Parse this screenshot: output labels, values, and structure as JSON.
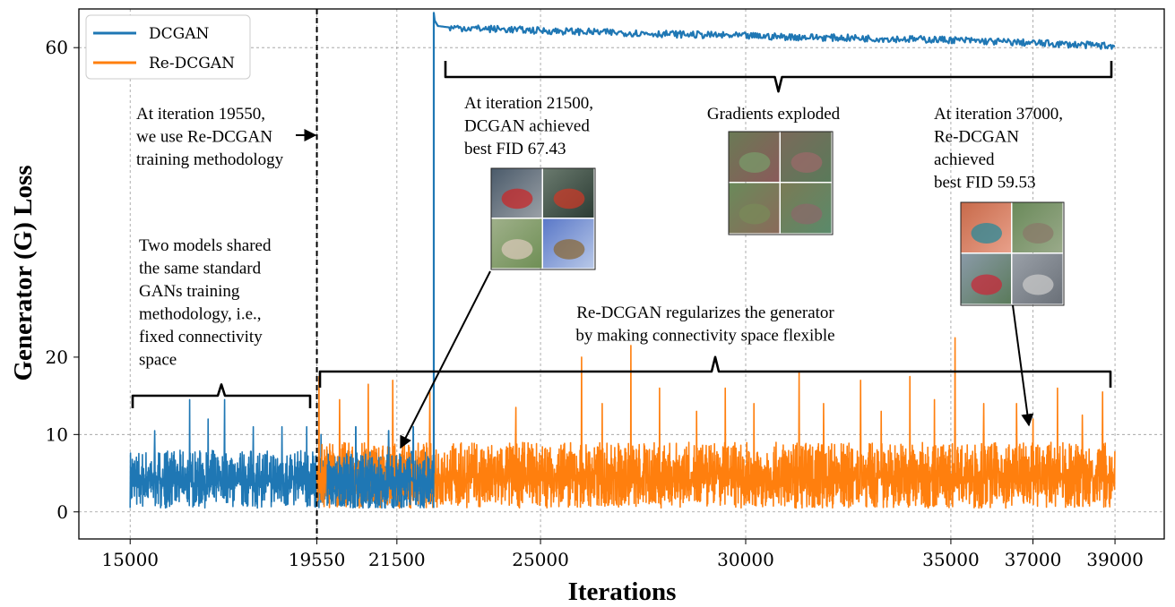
{
  "chart_data": {
    "type": "line",
    "title": "",
    "xlabel": "Iterations",
    "ylabel": "Generator (G) Loss",
    "xlim": [
      13750,
      40200
    ],
    "ylim": [
      -3.5,
      65
    ],
    "xticks": [
      15000,
      19550,
      21500,
      25000,
      30000,
      35000,
      37000,
      39000
    ],
    "yticks": [
      0,
      10,
      20,
      60
    ],
    "grid_x": [
      15000,
      19550,
      21500,
      25000,
      30000,
      35000,
      37000,
      39000
    ],
    "grid_y": [
      0,
      10,
      60
    ],
    "grid": true,
    "legend_position": "top-left",
    "vline": 19550,
    "series": [
      {
        "name": "DCGAN",
        "color": "#1f77b4",
        "segments": [
          {
            "x_range": [
              15000,
              22400
            ],
            "loss_band": [
              0.5,
              8
            ],
            "spikes": [
              [
                15600,
                10.5
              ],
              [
                16450,
                14.5
              ],
              [
                16900,
                12
              ],
              [
                17300,
                14.5
              ],
              [
                18000,
                11
              ],
              [
                18700,
                11
              ],
              [
                19300,
                11
              ],
              [
                19650,
                10
              ],
              [
                20500,
                11
              ],
              [
                21300,
                10.5
              ],
              [
                21900,
                11
              ]
            ]
          },
          {
            "x": [
              22400,
              22400,
              22420,
              22500,
              22800,
              25000,
              30000,
              35000,
              37000,
              39000
            ],
            "y": [
              5,
              64.5,
              63.5,
              62.8,
              62.6,
              62.2,
              61.5,
              61,
              60.6,
              60.2
            ]
          }
        ]
      },
      {
        "name": "Re-DCGAN",
        "color": "#ff7f0e",
        "segments": [
          {
            "x_range": [
              19550,
              39000
            ],
            "loss_band": [
              0.5,
              9
            ],
            "spikes": [
              [
                19600,
                17.5
              ],
              [
                20100,
                14.5
              ],
              [
                20800,
                16.5
              ],
              [
                21400,
                17
              ],
              [
                22300,
                15.5
              ],
              [
                24400,
                13.5
              ],
              [
                26000,
                20
              ],
              [
                26500,
                14
              ],
              [
                27200,
                21.5
              ],
              [
                27900,
                16
              ],
              [
                28800,
                13
              ],
              [
                29500,
                16
              ],
              [
                30200,
                14
              ],
              [
                31300,
                18
              ],
              [
                31900,
                14
              ],
              [
                32800,
                17
              ],
              [
                33300,
                13
              ],
              [
                34000,
                17.5
              ],
              [
                34600,
                14.5
              ],
              [
                35100,
                22.5
              ],
              [
                35800,
                14
              ],
              [
                36600,
                14
              ],
              [
                37000,
                12
              ],
              [
                37600,
                16
              ],
              [
                38200,
                12.5
              ],
              [
                38700,
                15.5
              ]
            ]
          }
        ]
      }
    ],
    "annotations": {
      "switch_note": [
        "At iteration 19550,",
        "we use Re-DCGAN",
        "training methodology"
      ],
      "shared_note": [
        "Two models shared",
        "the same standard",
        "GANs training",
        "methodology, i.e.,",
        "fixed connectivity",
        "space"
      ],
      "dcgan_best": [
        "At iteration 21500,",
        "DCGAN achieved",
        "best FID 67.43"
      ],
      "exploded": "Gradients exploded",
      "redcgan_best": [
        "At iteration 37000,",
        "Re-DCGAN",
        "achieved",
        "best FID 59.53"
      ],
      "regularizes": [
        "Re-DCGAN regularizes the generator",
        "by making connectivity space flexible"
      ]
    }
  }
}
